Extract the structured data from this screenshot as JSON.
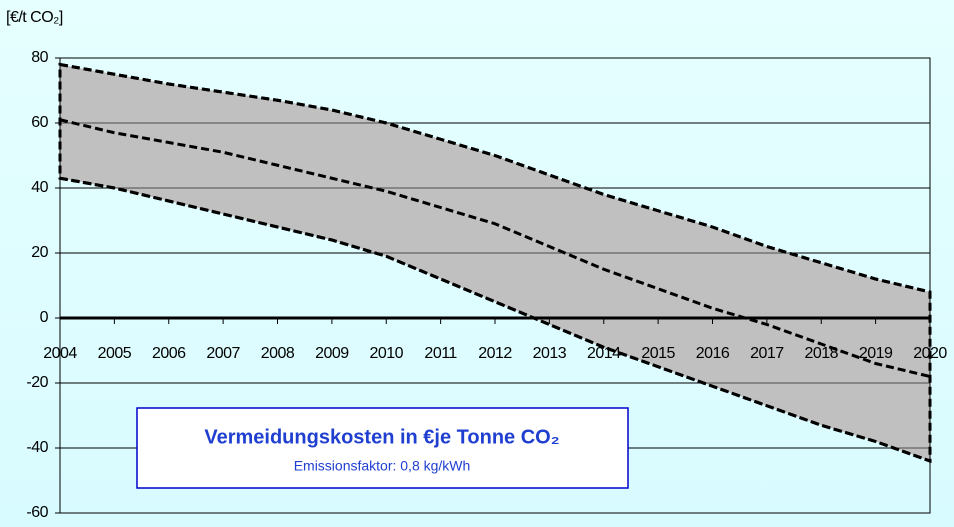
{
  "chart_data": {
    "type": "line",
    "y_axis_label": "[€/t CO₂]",
    "annotation_title": "Vermeidungskosten in €je Tonne CO₂",
    "annotation_subtitle": "Emissionsfaktor: 0,8 kg/kWh",
    "x": [
      2004,
      2005,
      2006,
      2007,
      2008,
      2009,
      2010,
      2011,
      2012,
      2013,
      2014,
      2015,
      2016,
      2017,
      2018,
      2019,
      2020
    ],
    "series": [
      {
        "color": "#000000",
        "values": [
          78,
          75,
          72,
          69.5,
          67,
          64,
          60,
          55,
          50,
          44,
          38,
          33,
          28,
          22,
          17,
          12,
          8
        ]
      },
      {
        "color": "#000000",
        "values": [
          61,
          57,
          54,
          51,
          47,
          43,
          39,
          34,
          29,
          22,
          15,
          9,
          3,
          -2,
          -8,
          -14,
          -18
        ]
      },
      {
        "color": "#000000",
        "values": [
          43,
          40,
          36,
          32,
          28,
          24,
          19,
          12,
          5,
          -2,
          -9,
          -15,
          -21,
          -27,
          -33,
          -38,
          -44
        ]
      }
    ],
    "band_color": "#c0c0c0",
    "xlim": [
      2004,
      2020
    ],
    "xticks": [
      2004,
      2005,
      2006,
      2007,
      2008,
      2009,
      2010,
      2011,
      2012,
      2013,
      2014,
      2015,
      2016,
      2017,
      2018,
      2019,
      2020
    ],
    "ylim": [
      -60,
      80
    ],
    "yticks": [
      -60,
      -40,
      -20,
      0,
      20,
      40,
      60,
      80
    ],
    "grid": true
  }
}
